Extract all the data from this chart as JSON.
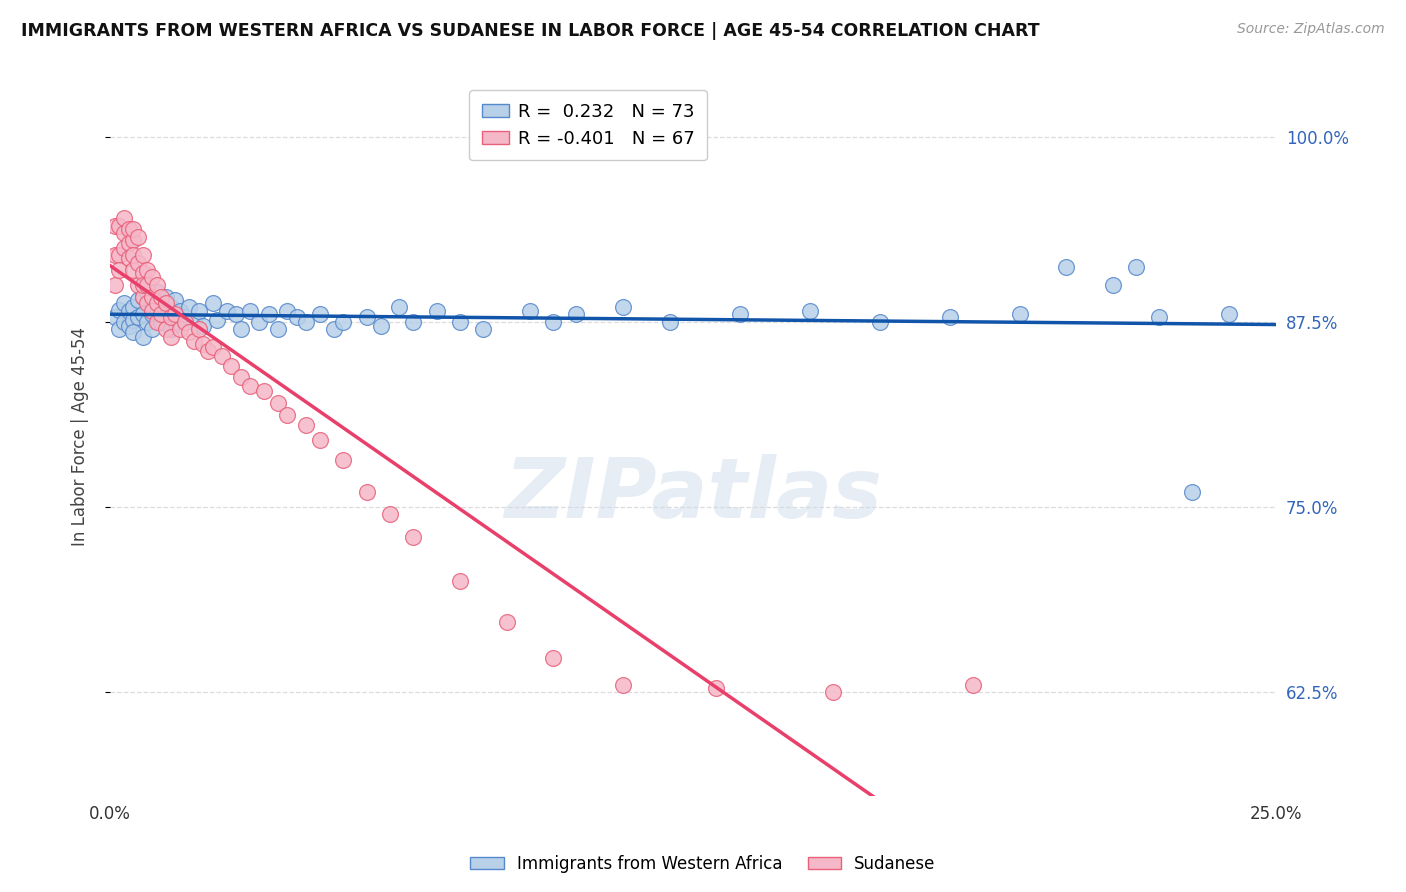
{
  "title": "IMMIGRANTS FROM WESTERN AFRICA VS SUDANESE IN LABOR FORCE | AGE 45-54 CORRELATION CHART",
  "source": "Source: ZipAtlas.com",
  "ylabel": "In Labor Force | Age 45-54",
  "xlim": [
    0.0,
    0.25
  ],
  "ylim": [
    0.555,
    1.04
  ],
  "xticks": [
    0.0,
    0.05,
    0.1,
    0.15,
    0.2,
    0.25
  ],
  "xticklabels": [
    "0.0%",
    "",
    "",
    "",
    "",
    "25.0%"
  ],
  "yticks": [
    0.625,
    0.75,
    0.875,
    1.0
  ],
  "yticklabels": [
    "62.5%",
    "75.0%",
    "87.5%",
    "100.0%"
  ],
  "blue_R": 0.232,
  "blue_N": 73,
  "pink_R": -0.401,
  "pink_N": 67,
  "blue_color": "#b8d0e8",
  "pink_color": "#f5b8c8",
  "blue_edge_color": "#5588cc",
  "pink_edge_color": "#e8607a",
  "blue_line_color": "#1155aa",
  "pink_line_color": "#e8406a",
  "blue_scatter_x": [
    0.001,
    0.002,
    0.002,
    0.003,
    0.003,
    0.004,
    0.004,
    0.005,
    0.005,
    0.005,
    0.006,
    0.006,
    0.007,
    0.007,
    0.007,
    0.008,
    0.008,
    0.009,
    0.009,
    0.01,
    0.01,
    0.011,
    0.011,
    0.012,
    0.012,
    0.013,
    0.013,
    0.014,
    0.014,
    0.015,
    0.016,
    0.017,
    0.018,
    0.019,
    0.02,
    0.022,
    0.023,
    0.025,
    0.027,
    0.028,
    0.03,
    0.032,
    0.034,
    0.036,
    0.038,
    0.04,
    0.042,
    0.045,
    0.048,
    0.05,
    0.055,
    0.058,
    0.062,
    0.065,
    0.07,
    0.075,
    0.08,
    0.09,
    0.095,
    0.1,
    0.11,
    0.12,
    0.135,
    0.15,
    0.165,
    0.18,
    0.195,
    0.205,
    0.215,
    0.22,
    0.225,
    0.232,
    0.24
  ],
  "blue_scatter_y": [
    0.878,
    0.883,
    0.87,
    0.875,
    0.888,
    0.882,
    0.872,
    0.885,
    0.876,
    0.868,
    0.89,
    0.878,
    0.892,
    0.88,
    0.865,
    0.895,
    0.875,
    0.88,
    0.87,
    0.895,
    0.88,
    0.888,
    0.875,
    0.892,
    0.878,
    0.885,
    0.87,
    0.89,
    0.875,
    0.882,
    0.878,
    0.885,
    0.875,
    0.882,
    0.872,
    0.888,
    0.876,
    0.882,
    0.88,
    0.87,
    0.882,
    0.875,
    0.88,
    0.87,
    0.882,
    0.878,
    0.875,
    0.88,
    0.87,
    0.875,
    0.878,
    0.872,
    0.885,
    0.875,
    0.882,
    0.875,
    0.87,
    0.882,
    0.875,
    0.88,
    0.885,
    0.875,
    0.88,
    0.882,
    0.875,
    0.878,
    0.88,
    0.912,
    0.9,
    0.912,
    0.878,
    0.76,
    0.88
  ],
  "pink_scatter_x": [
    0.001,
    0.001,
    0.001,
    0.002,
    0.002,
    0.002,
    0.003,
    0.003,
    0.003,
    0.004,
    0.004,
    0.004,
    0.005,
    0.005,
    0.005,
    0.005,
    0.006,
    0.006,
    0.006,
    0.007,
    0.007,
    0.007,
    0.007,
    0.008,
    0.008,
    0.008,
    0.009,
    0.009,
    0.009,
    0.01,
    0.01,
    0.01,
    0.011,
    0.011,
    0.012,
    0.012,
    0.013,
    0.013,
    0.014,
    0.015,
    0.016,
    0.017,
    0.018,
    0.019,
    0.02,
    0.021,
    0.022,
    0.024,
    0.026,
    0.028,
    0.03,
    0.033,
    0.036,
    0.038,
    0.042,
    0.045,
    0.05,
    0.055,
    0.06,
    0.065,
    0.075,
    0.085,
    0.095,
    0.11,
    0.13,
    0.155,
    0.185
  ],
  "pink_scatter_y": [
    0.9,
    0.92,
    0.94,
    0.92,
    0.91,
    0.94,
    0.925,
    0.935,
    0.945,
    0.928,
    0.938,
    0.918,
    0.93,
    0.91,
    0.92,
    0.938,
    0.9,
    0.915,
    0.932,
    0.908,
    0.92,
    0.892,
    0.9,
    0.91,
    0.888,
    0.9,
    0.905,
    0.892,
    0.882,
    0.9,
    0.888,
    0.875,
    0.892,
    0.88,
    0.888,
    0.87,
    0.878,
    0.865,
    0.88,
    0.87,
    0.875,
    0.868,
    0.862,
    0.87,
    0.86,
    0.855,
    0.858,
    0.852,
    0.845,
    0.838,
    0.832,
    0.828,
    0.82,
    0.812,
    0.805,
    0.795,
    0.782,
    0.76,
    0.745,
    0.73,
    0.7,
    0.672,
    0.648,
    0.63,
    0.628,
    0.625,
    0.63
  ],
  "watermark": "ZIPatlas",
  "legend_label_blue": "Immigrants from Western Africa",
  "legend_label_pink": "Sudanese",
  "background_color": "#ffffff",
  "grid_color": "#dddddd",
  "pink_line_end_x": 0.185,
  "right_ytick_color": "#3366bb"
}
